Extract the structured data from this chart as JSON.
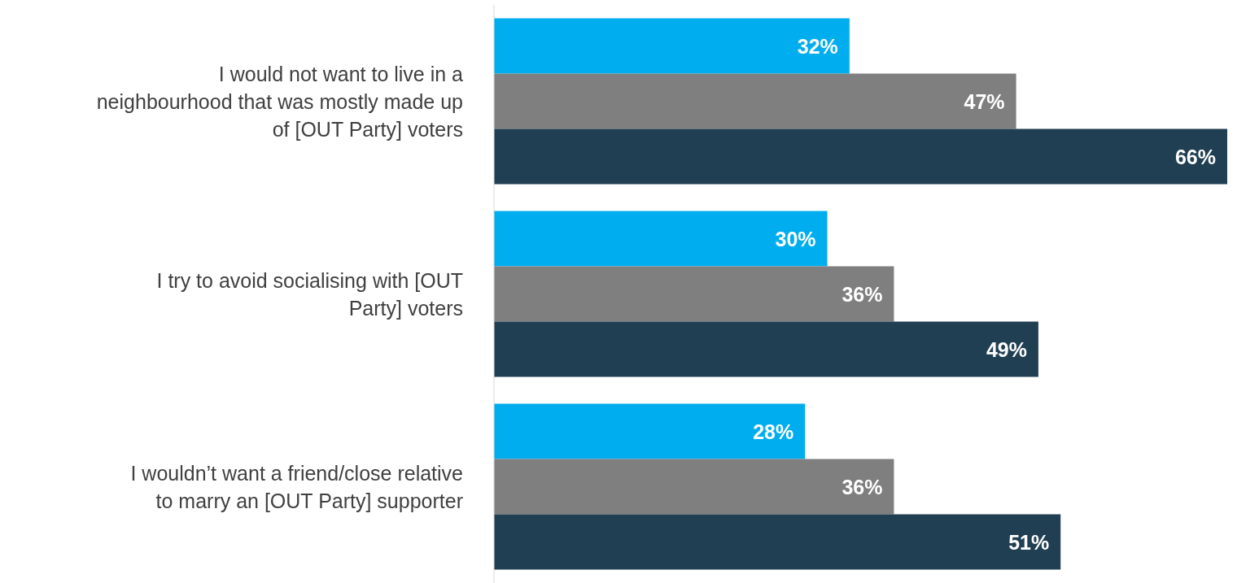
{
  "chart_data": {
    "type": "bar",
    "orientation": "horizontal",
    "tick_labels": "y",
    "categories": [
      "I would not want to live in a neighbourhood that was mostly made up of [OUT Party] voters",
      "I try to avoid socialising with [OUT Party] voters",
      "I wouldn’t want a friend/close relative to marry an [OUT Party] supporter"
    ],
    "series": [
      {
        "color": "#00aeef",
        "values": [
          32,
          30,
          28
        ],
        "value_labels": [
          "32%",
          "30%",
          "28%"
        ]
      },
      {
        "color": "#7f7f7f",
        "values": [
          47,
          36,
          36
        ],
        "value_labels": [
          "47%",
          "36%",
          "36%"
        ]
      },
      {
        "color": "#213f52",
        "values": [
          66,
          49,
          51
        ],
        "value_labels": [
          "66%",
          "49%",
          "51%"
        ]
      }
    ]
  }
}
